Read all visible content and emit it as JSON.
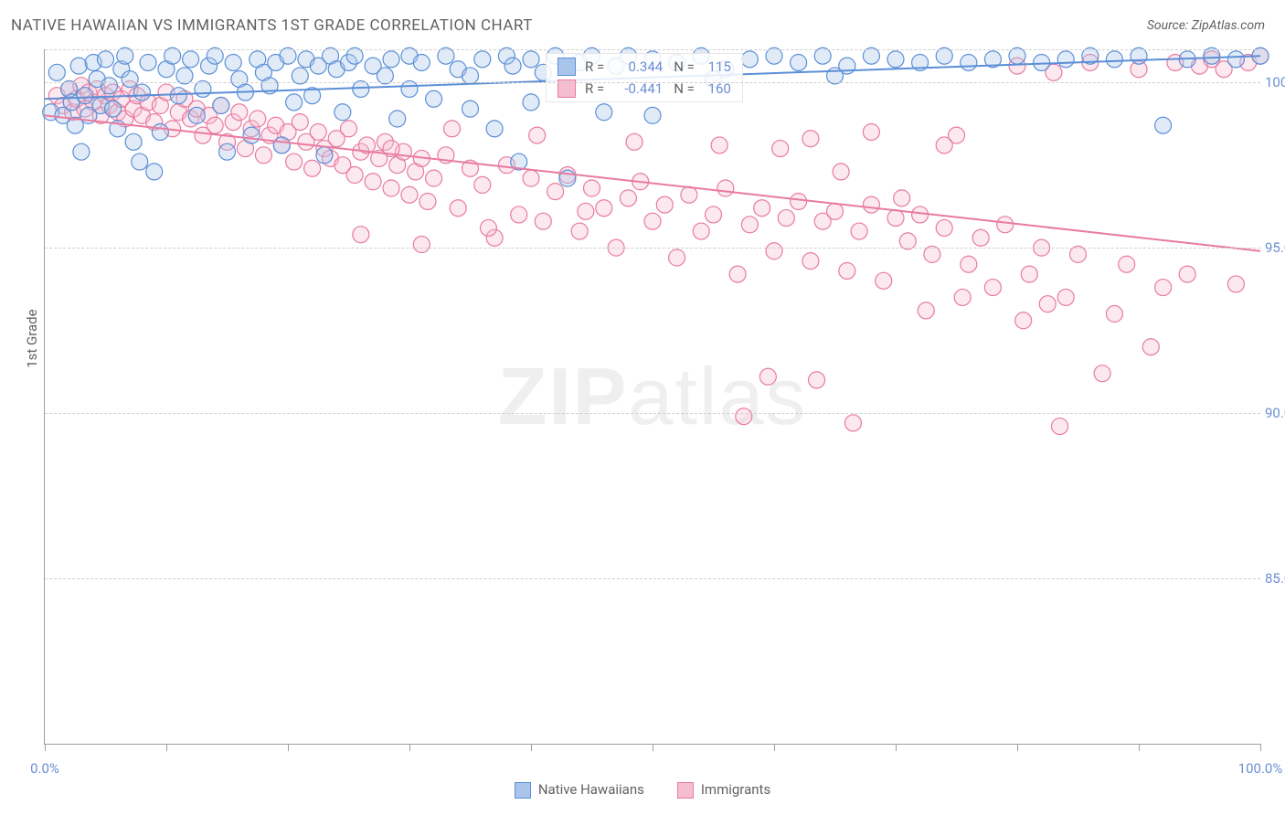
{
  "title": "NATIVE HAWAIIAN VS IMMIGRANTS 1ST GRADE CORRELATION CHART",
  "source": "Source: ZipAtlas.com",
  "watermark": {
    "part1": "ZIP",
    "part2": "atlas"
  },
  "yaxis_label": "1st Grade",
  "chart": {
    "type": "scatter",
    "xlim": [
      0,
      100
    ],
    "ylim": [
      80,
      101
    ],
    "x_ticks": [
      0,
      10,
      20,
      30,
      40,
      50,
      60,
      70,
      80,
      90,
      100
    ],
    "x_tick_labels": {
      "0": "0.0%",
      "100": "100.0%"
    },
    "y_gridlines": [
      85,
      90,
      95,
      100,
      101
    ],
    "y_tick_labels": {
      "85": "85.0%",
      "90": "90.0%",
      "95": "95.0%",
      "100": "100.0%"
    },
    "background_color": "#ffffff",
    "grid_color": "#cfcfcf",
    "axis_color": "#9e9e9e",
    "marker_radius": 9,
    "marker_stroke_width": 1.2,
    "marker_fill_opacity": 0.35,
    "line_width": 2,
    "series": [
      {
        "name": "Native Hawaiians",
        "color_stroke": "#5b8fd6",
        "color_fill": "#a9c5ec",
        "R": "0.344",
        "N": "115",
        "trend": {
          "x1": 0,
          "y1": 99.5,
          "x2": 100,
          "y2": 100.8
        },
        "points": [
          [
            0.5,
            99.1
          ],
          [
            1,
            100.3
          ],
          [
            1.5,
            99.0
          ],
          [
            2,
            99.8
          ],
          [
            2.2,
            99.4
          ],
          [
            2.5,
            98.7
          ],
          [
            2.8,
            100.5
          ],
          [
            3,
            97.9
          ],
          [
            3.3,
            99.6
          ],
          [
            3.6,
            99.0
          ],
          [
            4,
            100.6
          ],
          [
            4.3,
            100.1
          ],
          [
            4.6,
            99.3
          ],
          [
            5,
            100.7
          ],
          [
            5.3,
            99.9
          ],
          [
            5.6,
            99.2
          ],
          [
            6,
            98.6
          ],
          [
            6.3,
            100.4
          ],
          [
            6.6,
            100.8
          ],
          [
            7,
            100.1
          ],
          [
            7.3,
            98.2
          ],
          [
            7.8,
            97.6
          ],
          [
            8,
            99.7
          ],
          [
            8.5,
            100.6
          ],
          [
            9,
            97.3
          ],
          [
            9.5,
            98.5
          ],
          [
            10,
            100.4
          ],
          [
            10.5,
            100.8
          ],
          [
            11,
            99.6
          ],
          [
            11.5,
            100.2
          ],
          [
            12,
            100.7
          ],
          [
            12.5,
            99.0
          ],
          [
            13,
            99.8
          ],
          [
            13.5,
            100.5
          ],
          [
            14,
            100.8
          ],
          [
            14.5,
            99.3
          ],
          [
            15,
            97.9
          ],
          [
            15.5,
            100.6
          ],
          [
            16,
            100.1
          ],
          [
            16.5,
            99.7
          ],
          [
            17,
            98.4
          ],
          [
            17.5,
            100.7
          ],
          [
            18,
            100.3
          ],
          [
            18.5,
            99.9
          ],
          [
            19,
            100.6
          ],
          [
            19.5,
            98.1
          ],
          [
            20,
            100.8
          ],
          [
            20.5,
            99.4
          ],
          [
            21,
            100.2
          ],
          [
            21.5,
            100.7
          ],
          [
            22,
            99.6
          ],
          [
            22.5,
            100.5
          ],
          [
            23,
            97.8
          ],
          [
            23.5,
            100.8
          ],
          [
            24,
            100.4
          ],
          [
            24.5,
            99.1
          ],
          [
            25,
            100.6
          ],
          [
            25.5,
            100.8
          ],
          [
            26,
            99.8
          ],
          [
            27,
            100.5
          ],
          [
            28,
            100.2
          ],
          [
            28.5,
            100.7
          ],
          [
            29,
            98.9
          ],
          [
            30,
            100.8
          ],
          [
            31,
            100.6
          ],
          [
            32,
            99.5
          ],
          [
            33,
            100.8
          ],
          [
            34,
            100.4
          ],
          [
            35,
            99.2
          ],
          [
            36,
            100.7
          ],
          [
            37,
            98.6
          ],
          [
            38,
            100.8
          ],
          [
            38.5,
            100.5
          ],
          [
            39,
            97.6
          ],
          [
            40,
            100.7
          ],
          [
            41,
            100.3
          ],
          [
            42,
            100.8
          ],
          [
            43,
            97.1
          ],
          [
            44,
            100.6
          ],
          [
            45,
            100.8
          ],
          [
            46,
            99.1
          ],
          [
            47,
            100.5
          ],
          [
            48,
            100.8
          ],
          [
            50,
            100.7
          ],
          [
            52,
            100.6
          ],
          [
            54,
            100.8
          ],
          [
            56,
            100.4
          ],
          [
            58,
            100.7
          ],
          [
            60,
            100.8
          ],
          [
            62,
            100.6
          ],
          [
            64,
            100.8
          ],
          [
            66,
            100.5
          ],
          [
            68,
            100.8
          ],
          [
            70,
            100.7
          ],
          [
            72,
            100.6
          ],
          [
            74,
            100.8
          ],
          [
            76,
            100.6
          ],
          [
            78,
            100.7
          ],
          [
            80,
            100.8
          ],
          [
            82,
            100.6
          ],
          [
            84,
            100.7
          ],
          [
            86,
            100.8
          ],
          [
            88,
            100.7
          ],
          [
            90,
            100.8
          ],
          [
            92,
            98.7
          ],
          [
            94,
            100.7
          ],
          [
            96,
            100.8
          ],
          [
            98,
            100.7
          ],
          [
            100,
            100.8
          ],
          [
            30,
            99.8
          ],
          [
            35,
            100.2
          ],
          [
            40,
            99.4
          ],
          [
            50,
            99.0
          ],
          [
            55,
            100.1
          ],
          [
            65,
            100.2
          ]
        ]
      },
      {
        "name": "Immigrants",
        "color_stroke": "#e87ba0",
        "color_fill": "#f5bdd0",
        "R": "-0.441",
        "N": "160",
        "trend": {
          "x1": 0,
          "y1": 99.0,
          "x2": 100,
          "y2": 94.9
        },
        "points": [
          [
            1,
            99.6
          ],
          [
            1.5,
            99.3
          ],
          [
            2,
            99.8
          ],
          [
            2.3,
            99.1
          ],
          [
            2.6,
            99.5
          ],
          [
            3,
            99.9
          ],
          [
            3.3,
            99.2
          ],
          [
            3.6,
            99.7
          ],
          [
            4,
            99.4
          ],
          [
            4.3,
            99.8
          ],
          [
            4.6,
            99.0
          ],
          [
            5,
            99.6
          ],
          [
            5.3,
            99.3
          ],
          [
            5.6,
            99.7
          ],
          [
            6,
            99.1
          ],
          [
            6.3,
            99.5
          ],
          [
            6.6,
            98.9
          ],
          [
            7,
            99.8
          ],
          [
            7.3,
            99.2
          ],
          [
            7.6,
            99.6
          ],
          [
            8,
            99.0
          ],
          [
            8.5,
            99.4
          ],
          [
            9,
            98.8
          ],
          [
            9.5,
            99.3
          ],
          [
            10,
            99.7
          ],
          [
            10.5,
            98.6
          ],
          [
            11,
            99.1
          ],
          [
            11.5,
            99.5
          ],
          [
            12,
            98.9
          ],
          [
            12.5,
            99.2
          ],
          [
            13,
            98.4
          ],
          [
            13.5,
            99.0
          ],
          [
            14,
            98.7
          ],
          [
            14.5,
            99.3
          ],
          [
            15,
            98.2
          ],
          [
            15.5,
            98.8
          ],
          [
            16,
            99.1
          ],
          [
            16.5,
            98.0
          ],
          [
            17,
            98.6
          ],
          [
            17.5,
            98.9
          ],
          [
            18,
            97.8
          ],
          [
            18.5,
            98.4
          ],
          [
            19,
            98.7
          ],
          [
            19.5,
            98.1
          ],
          [
            20,
            98.5
          ],
          [
            20.5,
            97.6
          ],
          [
            21,
            98.8
          ],
          [
            21.5,
            98.2
          ],
          [
            22,
            97.4
          ],
          [
            22.5,
            98.5
          ],
          [
            23,
            98.0
          ],
          [
            23.5,
            97.7
          ],
          [
            24,
            98.3
          ],
          [
            24.5,
            97.5
          ],
          [
            25,
            98.6
          ],
          [
            25.5,
            97.2
          ],
          [
            26,
            97.9
          ],
          [
            26.5,
            98.1
          ],
          [
            27,
            97.0
          ],
          [
            27.5,
            97.7
          ],
          [
            28,
            98.2
          ],
          [
            28.5,
            96.8
          ],
          [
            29,
            97.5
          ],
          [
            29.5,
            97.9
          ],
          [
            30,
            96.6
          ],
          [
            30.5,
            97.3
          ],
          [
            31,
            97.7
          ],
          [
            31.5,
            96.4
          ],
          [
            32,
            97.1
          ],
          [
            33,
            97.8
          ],
          [
            34,
            96.2
          ],
          [
            35,
            97.4
          ],
          [
            36,
            96.9
          ],
          [
            37,
            95.3
          ],
          [
            38,
            97.5
          ],
          [
            39,
            96.0
          ],
          [
            40,
            97.1
          ],
          [
            41,
            95.8
          ],
          [
            42,
            96.7
          ],
          [
            43,
            97.2
          ],
          [
            44,
            95.5
          ],
          [
            45,
            96.8
          ],
          [
            46,
            96.2
          ],
          [
            47,
            95.0
          ],
          [
            48,
            96.5
          ],
          [
            49,
            97.0
          ],
          [
            50,
            95.8
          ],
          [
            51,
            96.3
          ],
          [
            52,
            94.7
          ],
          [
            53,
            96.6
          ],
          [
            54,
            95.5
          ],
          [
            55,
            96.0
          ],
          [
            56,
            96.8
          ],
          [
            57,
            94.2
          ],
          [
            57.5,
            89.9
          ],
          [
            58,
            95.7
          ],
          [
            59,
            96.2
          ],
          [
            60,
            94.9
          ],
          [
            61,
            95.9
          ],
          [
            62,
            96.4
          ],
          [
            63,
            94.6
          ],
          [
            63.5,
            91.0
          ],
          [
            64,
            95.8
          ],
          [
            65,
            96.1
          ],
          [
            66,
            94.3
          ],
          [
            66.5,
            89.7
          ],
          [
            67,
            95.5
          ],
          [
            68,
            96.3
          ],
          [
            69,
            94.0
          ],
          [
            70,
            95.9
          ],
          [
            71,
            95.2
          ],
          [
            72,
            96.0
          ],
          [
            72.5,
            93.1
          ],
          [
            73,
            94.8
          ],
          [
            74,
            95.6
          ],
          [
            75,
            98.4
          ],
          [
            75.5,
            93.5
          ],
          [
            76,
            94.5
          ],
          [
            77,
            95.3
          ],
          [
            78,
            93.8
          ],
          [
            79,
            95.7
          ],
          [
            80,
            100.5
          ],
          [
            80.5,
            92.8
          ],
          [
            81,
            94.2
          ],
          [
            82,
            95.0
          ],
          [
            83,
            100.3
          ],
          [
            83.5,
            89.6
          ],
          [
            84,
            93.5
          ],
          [
            85,
            94.8
          ],
          [
            86,
            100.6
          ],
          [
            87,
            91.2
          ],
          [
            88,
            93.0
          ],
          [
            89,
            94.5
          ],
          [
            90,
            100.4
          ],
          [
            91,
            92.0
          ],
          [
            92,
            93.8
          ],
          [
            93,
            100.6
          ],
          [
            94,
            94.2
          ],
          [
            95,
            100.5
          ],
          [
            96,
            100.7
          ],
          [
            97,
            100.4
          ],
          [
            98,
            93.9
          ],
          [
            99,
            100.6
          ],
          [
            100,
            100.8
          ],
          [
            82.5,
            93.3
          ],
          [
            59.5,
            91.1
          ],
          [
            70.5,
            96.5
          ],
          [
            44.5,
            96.1
          ],
          [
            36.5,
            95.6
          ],
          [
            31,
            95.1
          ],
          [
            26,
            95.4
          ],
          [
            55.5,
            98.1
          ],
          [
            60.5,
            98.0
          ],
          [
            65.5,
            97.3
          ],
          [
            48.5,
            98.2
          ],
          [
            40.5,
            98.4
          ],
          [
            33.5,
            98.6
          ],
          [
            28.5,
            98.0
          ],
          [
            63,
            98.3
          ],
          [
            68,
            98.5
          ],
          [
            74,
            98.1
          ]
        ]
      }
    ]
  },
  "legend_bottom": [
    {
      "label": "Native Hawaiians",
      "stroke": "#5b8fd6",
      "fill": "#a9c5ec"
    },
    {
      "label": "Immigrants",
      "stroke": "#e87ba0",
      "fill": "#f5bdd0"
    }
  ]
}
